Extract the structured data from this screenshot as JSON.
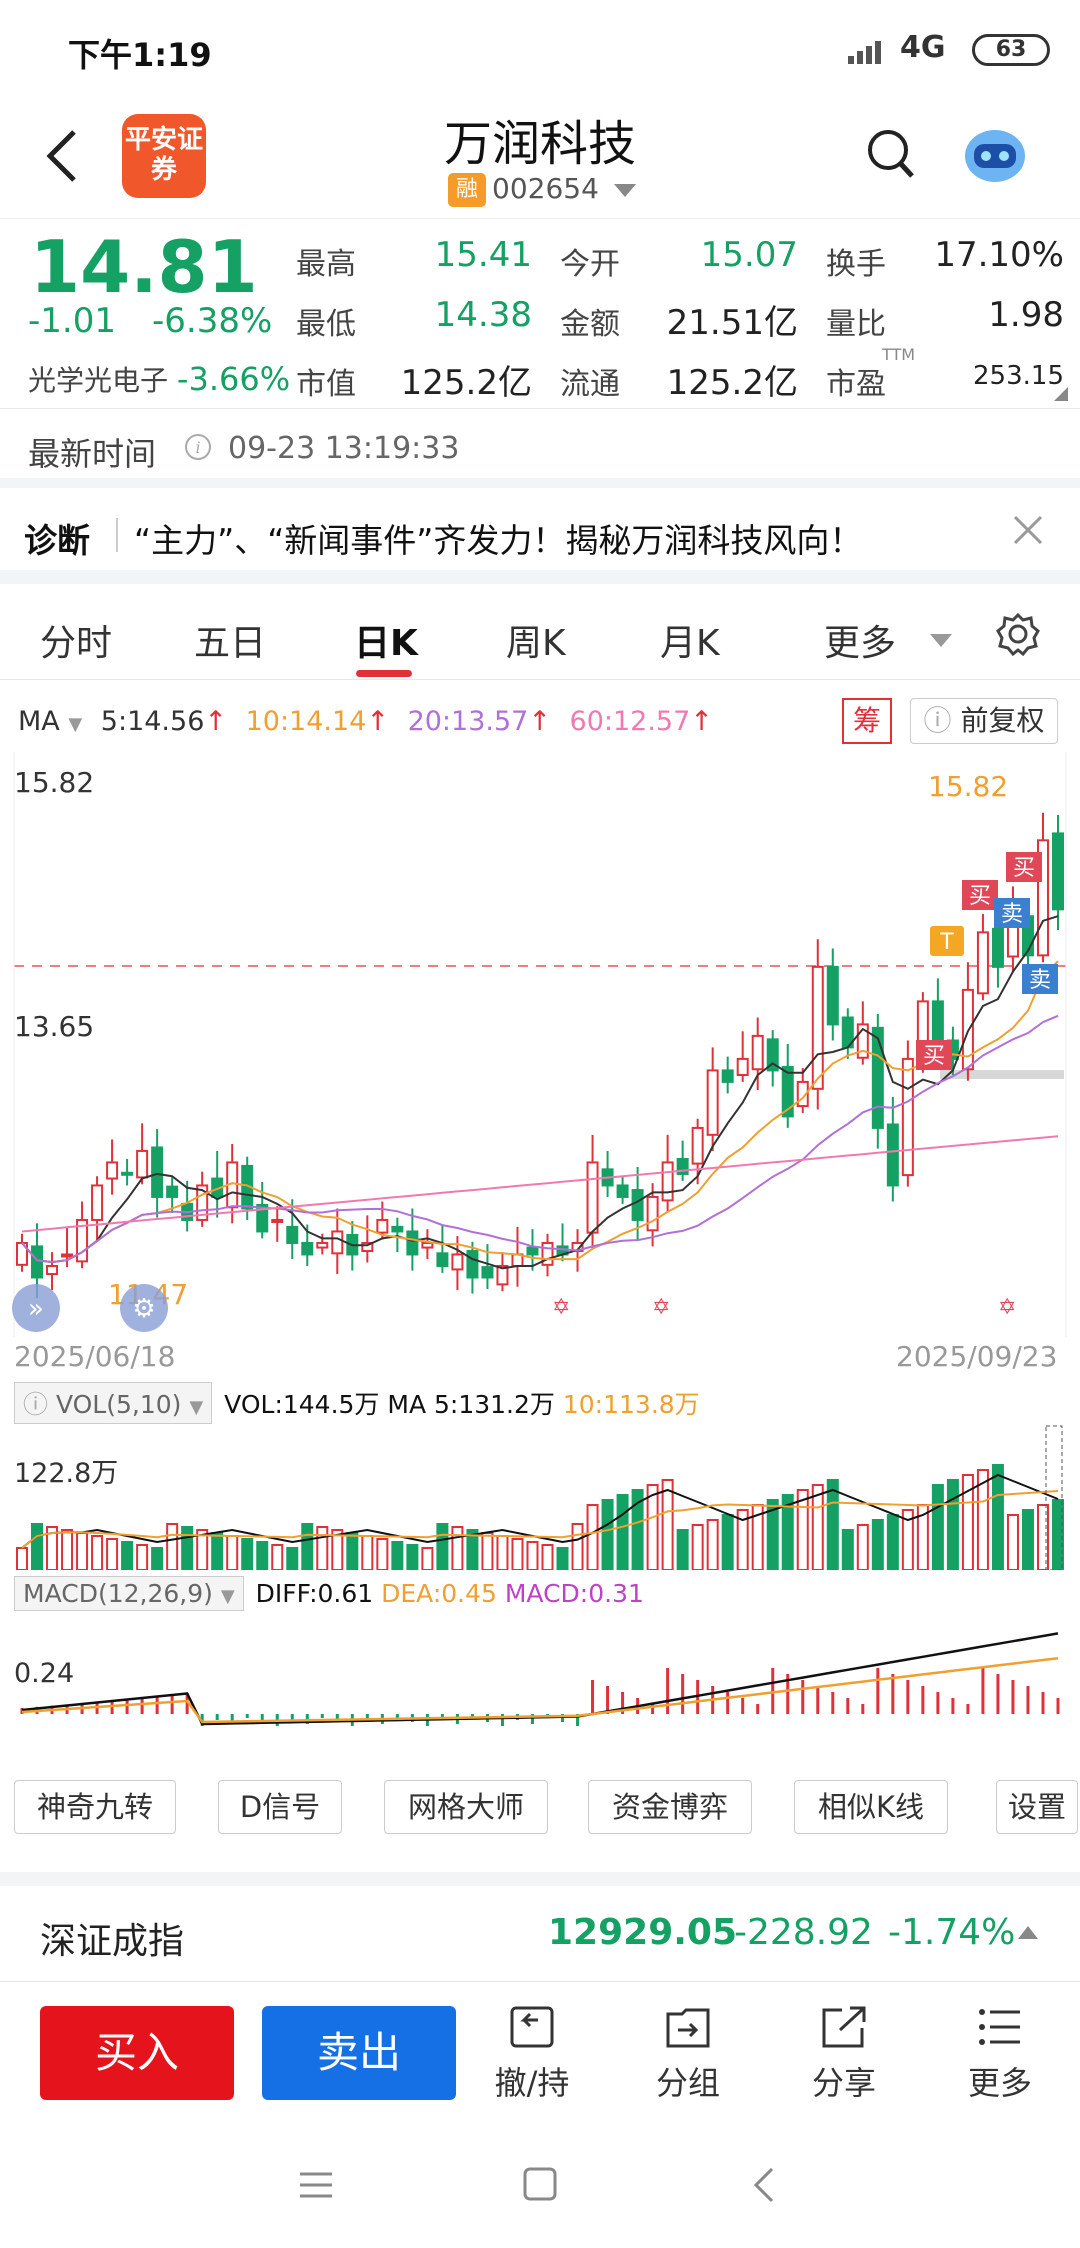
{
  "status_bar": {
    "time": "下午1:19",
    "network": "4G",
    "battery": "63"
  },
  "header": {
    "title": "万润科技",
    "logo_text": "平安证券",
    "margin_badge": "融",
    "code": "002654"
  },
  "quote": {
    "price": "14.81",
    "change": "-1.01",
    "change_pct": "-6.38%",
    "sector_name": "光学光电子",
    "sector_pct": "-3.66%",
    "fields": [
      {
        "label": "最高",
        "value": "15.41",
        "color": "#15a064"
      },
      {
        "label": "今开",
        "value": "15.07",
        "color": "#15a064"
      },
      {
        "label": "换手",
        "value": "17.10%",
        "color": "#222222"
      },
      {
        "label": "最低",
        "value": "14.38",
        "color": "#15a064"
      },
      {
        "label": "金额",
        "value": "21.51亿",
        "color": "#222222"
      },
      {
        "label": "量比",
        "value": "1.98",
        "color": "#222222"
      },
      {
        "label": "市值",
        "value": "125.2亿",
        "color": "#222222"
      },
      {
        "label": "流通",
        "value": "125.2亿",
        "color": "#222222"
      },
      {
        "label": "市盈",
        "value": "253.15",
        "color": "#222222"
      }
    ],
    "ttm": "TTM"
  },
  "latest_time": {
    "label": "最新时间",
    "value": "09-23 13:19:33"
  },
  "diagnosis": {
    "label": "诊断",
    "text": "“主力”、“新闻事件”齐发力！揭秘万润科技风向！"
  },
  "tabs": [
    "分时",
    "五日",
    "日K",
    "周K",
    "月K",
    "更多"
  ],
  "active_tab": "日K",
  "ma_legend": {
    "label": "MA",
    "items": [
      {
        "text": "5:14.56",
        "color": "#333333"
      },
      {
        "text": "10:14.14",
        "color": "#f0a030"
      },
      {
        "text": "20:13.57",
        "color": "#b070d8"
      },
      {
        "text": "60:12.57",
        "color": "#f07ab0"
      }
    ],
    "chou_label": "筹",
    "fuquan_label": "前复权"
  },
  "chart_data": {
    "type": "candlestick",
    "y_top_label": "15.82",
    "y_mid_label": "13.65",
    "high_marker": "15.82",
    "low_marker": "11.47",
    "start_date": "2025/06/18",
    "end_date": "2025/09/23",
    "signals": [
      "买",
      "买",
      "卖",
      "买",
      "卖",
      "T"
    ],
    "candles_close": [
      11.9,
      11.6,
      11.7,
      11.8,
      12.1,
      12.4,
      12.6,
      12.5,
      12.7,
      12.3,
      12.3,
      12.1,
      12.4,
      12.3,
      12.6,
      12.2,
      12.0,
      12.1,
      11.9,
      11.8,
      11.9,
      12.0,
      11.8,
      11.9,
      12.1,
      12.0,
      11.8,
      11.9,
      11.7,
      11.8,
      11.6,
      11.6,
      11.7,
      11.8,
      11.8,
      11.9,
      11.8,
      11.9,
      12.6,
      12.4,
      12.3,
      12.1,
      12.3,
      12.6,
      12.5,
      12.9,
      13.4,
      13.3,
      13.5,
      13.7,
      13.4,
      13.0,
      13.3,
      14.3,
      13.8,
      13.6,
      13.8,
      12.9,
      12.4,
      13.5,
      14.0,
      13.6,
      13.5,
      14.1,
      14.6,
      14.3,
      14.8,
      14.4,
      15.4,
      14.8
    ]
  },
  "volume": {
    "label": "VOL(5,10)",
    "vol_text": "VOL:144.5万",
    "ma5_text": "MA 5:131.2万",
    "ma10_text": "10:113.8万",
    "axis_label": "122.8万"
  },
  "macd": {
    "label": "MACD(12,26,9)",
    "diff_text": "DIFF:0.61",
    "dea_text": "DEA:0.45",
    "macd_text": "MACD:0.31",
    "axis_label": "0.24"
  },
  "tools": [
    "神奇九转",
    "D信号",
    "网格大师",
    "资金博弈",
    "相似K线",
    "设置"
  ],
  "index_bar": {
    "name": "深证成指",
    "value": "12929.05",
    "change": "-228.92",
    "pct": "-1.74%"
  },
  "bottom": {
    "buy": "买入",
    "sell": "卖出",
    "actions": [
      "撤/持",
      "分组",
      "分享",
      "更多"
    ]
  }
}
